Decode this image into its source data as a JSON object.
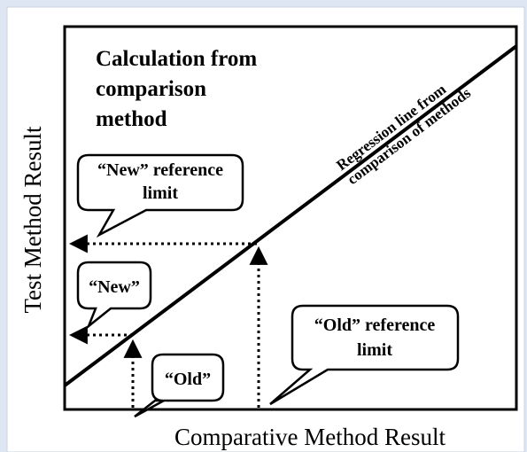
{
  "title": [
    "Calculation from",
    "comparison",
    "method"
  ],
  "y_axis_label": "Test Method Result",
  "x_axis_label": "Comparative Method Result",
  "regression_label": [
    "Regression line from",
    "comparison of methods"
  ],
  "callouts": [
    {
      "lines": [
        "“New” reference",
        "limit"
      ]
    },
    {
      "lines": [
        "“New”"
      ]
    },
    {
      "lines": [
        "“Old”"
      ]
    },
    {
      "lines": [
        "“Old” reference",
        "limit"
      ]
    }
  ]
}
